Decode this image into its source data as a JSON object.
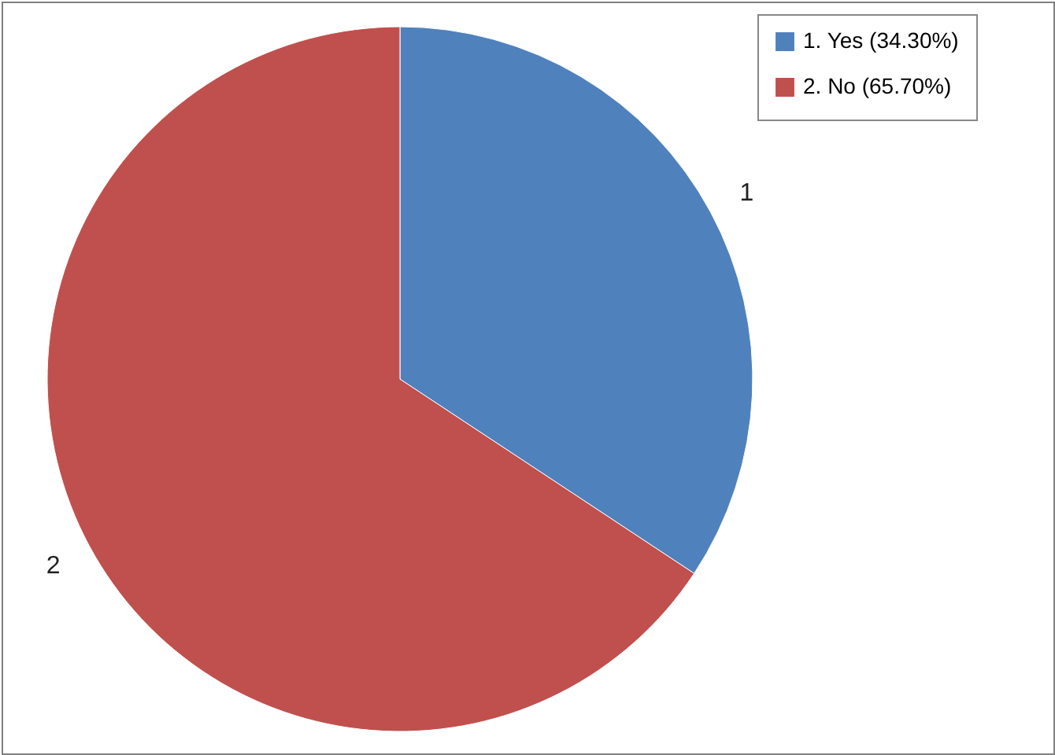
{
  "chart_data": {
    "type": "pie",
    "categories": [
      "1. Yes (34.30%)",
      "2. No (65.70%)"
    ],
    "values": [
      34.3,
      65.7
    ],
    "colors": [
      "#4f81bd",
      "#c0504d"
    ],
    "legend": "top right",
    "annotations": [
      {
        "text": "1",
        "x": "1. Yes (34.30%)"
      },
      {
        "text": "2",
        "x": "2. No (65.70%)"
      }
    ]
  }
}
